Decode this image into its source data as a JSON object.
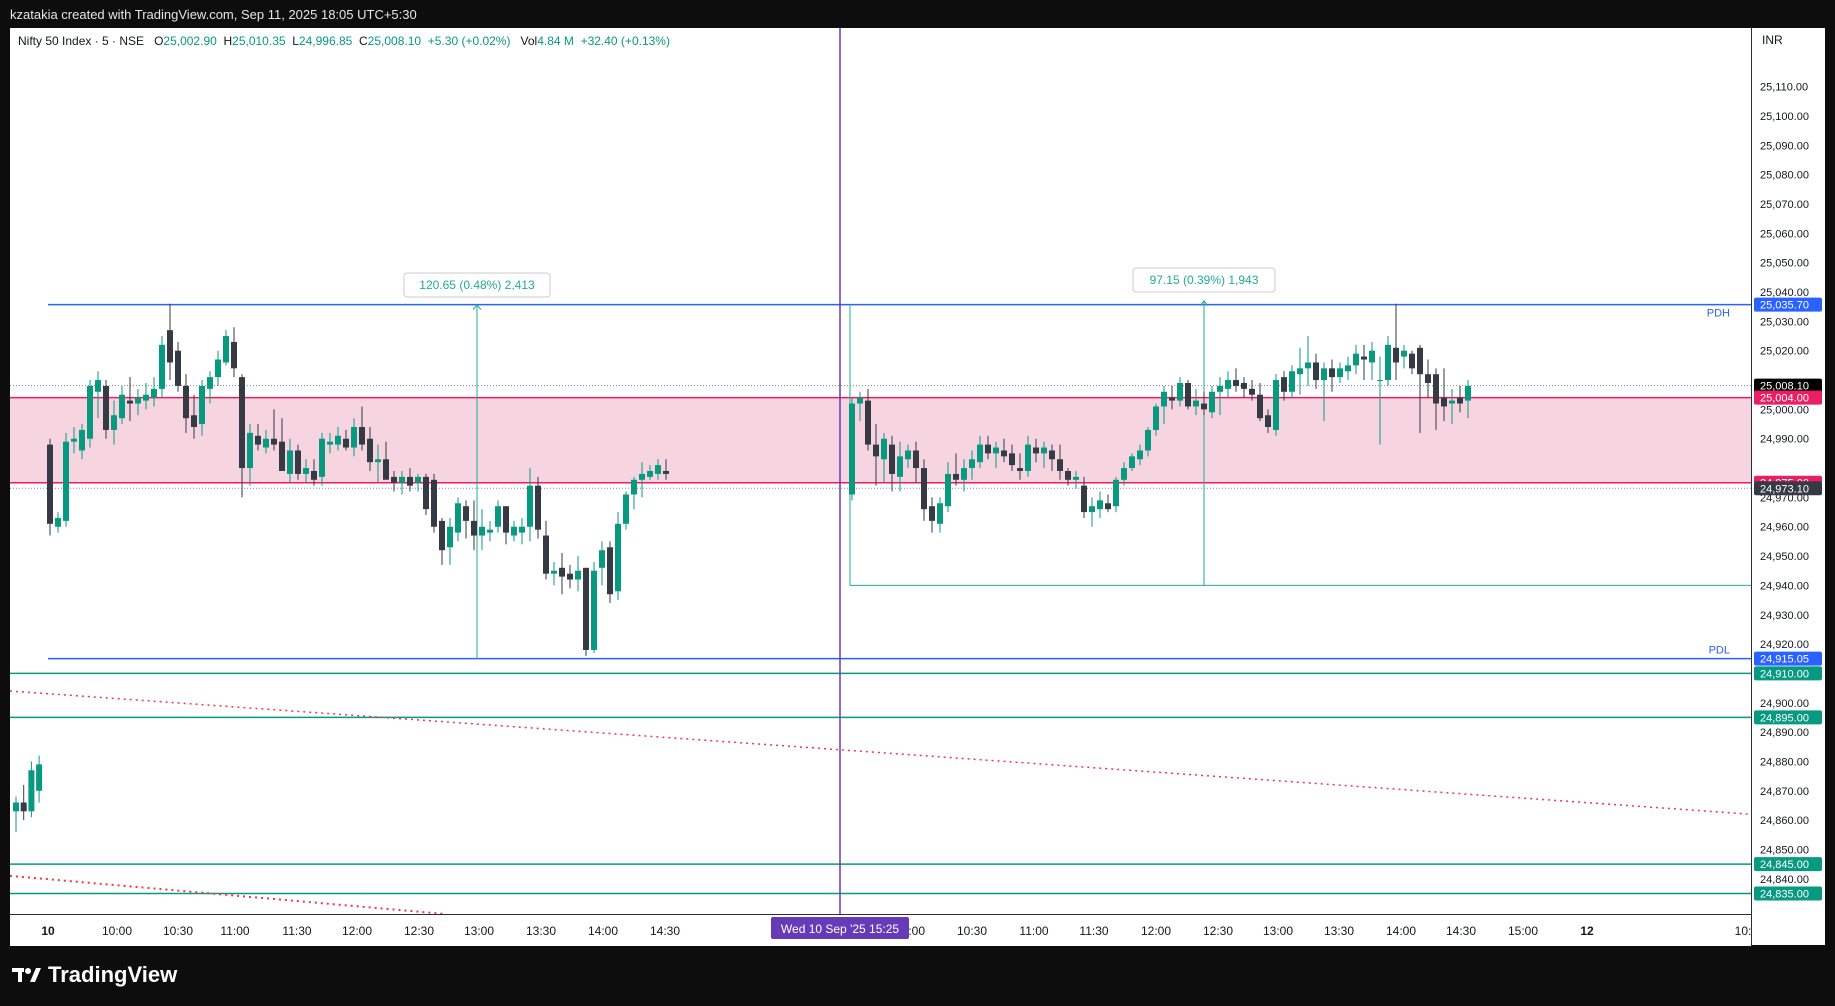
{
  "header": {
    "text": "kzatakia created with TradingView.com, Sep 11, 2025 18:05 UTC+5:30"
  },
  "legend": {
    "symbol": "Nifty 50 Index · 5 · NSE",
    "o_label": "O",
    "o": "25,002.90",
    "h_label": "H",
    "h": "25,010.35",
    "l_label": "L",
    "l": "24,996.85",
    "c_label": "C",
    "c": "25,008.10",
    "change": "+5.30 (+0.02%)",
    "vol_label": "Vol",
    "vol": "4.84 M",
    "vol_change": "+32.40 (+0.13%)"
  },
  "currency": "INR",
  "footer": {
    "brand": "TradingView"
  },
  "colors": {
    "up": "#089981",
    "down": "#363a45",
    "level": "#2962ff",
    "zone": "#f7d5e0",
    "zone_line": "#e91e63",
    "cursor": "#673ab7",
    "trend": "#f23645",
    "green_line": "#089981"
  },
  "chart_data": {
    "type": "candlestick",
    "ylim": [
      24828,
      25130
    ],
    "y_ticks": [
      "25,110.00",
      "25,100.00",
      "25,090.00",
      "25,080.00",
      "25,070.00",
      "25,060.00",
      "25,050.00",
      "25,040.00",
      "25,030.00",
      "25,020.00",
      "25,000.00",
      "24,990.00",
      "24,970.00",
      "24,960.00",
      "24,950.00",
      "24,940.00",
      "24,930.00",
      "24,920.00",
      "24,900.00",
      "24,890.00",
      "24,880.00",
      "24,870.00",
      "24,860.00",
      "24,850.00",
      "24,840.00"
    ],
    "x_ticks": [
      "10",
      "10:00",
      "10:30",
      "11:00",
      "11:30",
      "12:00",
      "12:30",
      "13:00",
      "13:30",
      "14:00",
      "14:30",
      "10:00",
      "10:30",
      "11:00",
      "11:30",
      "12:00",
      "12:30",
      "13:00",
      "13:30",
      "14:00",
      "14:30",
      "15:00",
      "12",
      "10:"
    ],
    "crosshair_time": "Wed 10 Sep '25   15:25",
    "price_labels": [
      {
        "price": 25035.7,
        "text": "25,035.70",
        "kind": "level"
      },
      {
        "price": 25008.1,
        "text": "25,008.10",
        "kind": "last"
      },
      {
        "price": 25004.0,
        "text": "25,004.00",
        "kind": "zone"
      },
      {
        "price": 24975.0,
        "text": "24,975.00",
        "kind": "zone"
      },
      {
        "price": 24973.1,
        "text": "24,973.10",
        "kind": "prev"
      },
      {
        "price": 24915.05,
        "text": "24,915.05",
        "kind": "level"
      },
      {
        "price": 24910.0,
        "text": "24,910.00",
        "kind": "green"
      },
      {
        "price": 24895.0,
        "text": "24,895.00",
        "kind": "green"
      },
      {
        "price": 24845.0,
        "text": "24,845.00",
        "kind": "green"
      },
      {
        "price": 24835.0,
        "text": "24,835.00",
        "kind": "green"
      }
    ],
    "annotations": {
      "pdh": "PDH",
      "pdl": "PDL",
      "measure_1": "120.65 (0.48%) 2,413",
      "measure_2": "97.15 (0.39%) 1,943"
    },
    "zone": [
      24975.0,
      25004.0
    ],
    "prev_day_tail": [
      {
        "o": 24863,
        "h": 24868,
        "l": 24856,
        "c": 24866
      },
      {
        "o": 24866,
        "h": 24872,
        "l": 24860,
        "c": 24863
      },
      {
        "o": 24863,
        "h": 24880,
        "l": 24861,
        "c": 24877
      },
      {
        "o": 24870,
        "h": 24882,
        "l": 24866,
        "c": 24879
      }
    ],
    "day1": [
      {
        "o": 24988,
        "h": 24990,
        "l": 24957,
        "c": 24961
      },
      {
        "o": 24960,
        "h": 24965,
        "l": 24958,
        "c": 24963
      },
      {
        "o": 24962,
        "h": 24992,
        "l": 24960,
        "c": 24989
      },
      {
        "o": 24989,
        "h": 24994,
        "l": 24985,
        "c": 24990
      },
      {
        "o": 24986,
        "h": 24995,
        "l": 24983,
        "c": 24993
      },
      {
        "o": 24990,
        "h": 25010,
        "l": 24987,
        "c": 25008
      },
      {
        "o": 25006,
        "h": 25013,
        "l": 24997,
        "c": 25010
      },
      {
        "o": 25008,
        "h": 25010,
        "l": 24990,
        "c": 24993
      },
      {
        "o": 24993,
        "h": 25003,
        "l": 24988,
        "c": 24998
      },
      {
        "o": 24997,
        "h": 25008,
        "l": 24995,
        "c": 25005
      },
      {
        "o": 25003,
        "h": 25011,
        "l": 24996,
        "c": 25002
      },
      {
        "o": 25002,
        "h": 25007,
        "l": 24998,
        "c": 25004
      },
      {
        "o": 25003,
        "h": 25009,
        "l": 25000,
        "c": 25005
      },
      {
        "o": 25004,
        "h": 25011,
        "l": 25001,
        "c": 25007
      },
      {
        "o": 25007,
        "h": 25025,
        "l": 25004,
        "c": 25022
      },
      {
        "o": 25027,
        "h": 25036,
        "l": 25010,
        "c": 25016
      },
      {
        "o": 25020,
        "h": 25023,
        "l": 25006,
        "c": 25008
      },
      {
        "o": 25008,
        "h": 25012,
        "l": 24992,
        "c": 24997
      },
      {
        "o": 24998,
        "h": 25005,
        "l": 24990,
        "c": 24994
      },
      {
        "o": 24995,
        "h": 25010,
        "l": 24991,
        "c": 25008
      },
      {
        "o": 25007,
        "h": 25013,
        "l": 25002,
        "c": 25011
      },
      {
        "o": 25011,
        "h": 25020,
        "l": 25008,
        "c": 25017
      },
      {
        "o": 25016,
        "h": 25027,
        "l": 25015,
        "c": 25025
      },
      {
        "o": 25023,
        "h": 25028,
        "l": 25011,
        "c": 25014
      },
      {
        "o": 25011,
        "h": 25012,
        "l": 24970,
        "c": 24980
      },
      {
        "o": 24980,
        "h": 24995,
        "l": 24974,
        "c": 24992
      },
      {
        "o": 24991,
        "h": 24995,
        "l": 24986,
        "c": 24988
      },
      {
        "o": 24987,
        "h": 24993,
        "l": 24985,
        "c": 24990
      },
      {
        "o": 24990,
        "h": 25000,
        "l": 24986,
        "c": 24988
      },
      {
        "o": 24989,
        "h": 24997,
        "l": 24981,
        "c": 24979
      },
      {
        "o": 24978,
        "h": 24990,
        "l": 24975,
        "c": 24986
      },
      {
        "o": 24986,
        "h": 24988,
        "l": 24976,
        "c": 24978
      },
      {
        "o": 24978,
        "h": 24983,
        "l": 24975,
        "c": 24980
      },
      {
        "o": 24979,
        "h": 24983,
        "l": 24974,
        "c": 24976
      },
      {
        "o": 24977,
        "h": 24992,
        "l": 24974,
        "c": 24990
      },
      {
        "o": 24988,
        "h": 24992,
        "l": 24985,
        "c": 24989
      },
      {
        "o": 24988,
        "h": 24994,
        "l": 24986,
        "c": 24991
      },
      {
        "o": 24990,
        "h": 24993,
        "l": 24986,
        "c": 24987
      },
      {
        "o": 24987,
        "h": 24997,
        "l": 24984,
        "c": 24994
      },
      {
        "o": 24994,
        "h": 25001,
        "l": 24986,
        "c": 24988
      },
      {
        "o": 24990,
        "h": 24994,
        "l": 24979,
        "c": 24982
      },
      {
        "o": 24982,
        "h": 24988,
        "l": 24975,
        "c": 24983
      },
      {
        "o": 24983,
        "h": 24989,
        "l": 24977,
        "c": 24976
      },
      {
        "o": 24977,
        "h": 24979,
        "l": 24972,
        "c": 24975
      },
      {
        "o": 24975,
        "h": 24979,
        "l": 24971,
        "c": 24977
      },
      {
        "o": 24977,
        "h": 24980,
        "l": 24972,
        "c": 24974
      },
      {
        "o": 24975,
        "h": 24978,
        "l": 24972,
        "c": 24977
      },
      {
        "o": 24977,
        "h": 24978,
        "l": 24964,
        "c": 24966
      },
      {
        "o": 24976,
        "h": 24978,
        "l": 24958,
        "c": 24960
      },
      {
        "o": 24962,
        "h": 24963,
        "l": 24947,
        "c": 24952
      },
      {
        "o": 24953,
        "h": 24963,
        "l": 24947,
        "c": 24960
      },
      {
        "o": 24958,
        "h": 24970,
        "l": 24955,
        "c": 24968
      },
      {
        "o": 24967,
        "h": 24969,
        "l": 24956,
        "c": 24962
      },
      {
        "o": 24962,
        "h": 24969,
        "l": 24952,
        "c": 24957
      },
      {
        "o": 24957,
        "h": 24966,
        "l": 24952,
        "c": 24960
      },
      {
        "o": 24958,
        "h": 24962,
        "l": 24955,
        "c": 24959
      },
      {
        "o": 24960,
        "h": 24969,
        "l": 24958,
        "c": 24967
      },
      {
        "o": 24967,
        "h": 24967,
        "l": 24954,
        "c": 24958
      },
      {
        "o": 24957,
        "h": 24962,
        "l": 24955,
        "c": 24960
      },
      {
        "o": 24958,
        "h": 24963,
        "l": 24954,
        "c": 24960
      },
      {
        "o": 24960,
        "h": 24980,
        "l": 24955,
        "c": 24974
      },
      {
        "o": 24974,
        "h": 24977,
        "l": 24956,
        "c": 24959
      },
      {
        "o": 24957,
        "h": 24962,
        "l": 24942,
        "c": 24944
      },
      {
        "o": 24944,
        "h": 24948,
        "l": 24940,
        "c": 24945
      },
      {
        "o": 24946,
        "h": 24951,
        "l": 24937,
        "c": 24943
      },
      {
        "o": 24944,
        "h": 24947,
        "l": 24939,
        "c": 24942
      },
      {
        "o": 24942,
        "h": 24950,
        "l": 24938,
        "c": 24945
      },
      {
        "o": 24946,
        "h": 24946,
        "l": 24916,
        "c": 24918
      },
      {
        "o": 24918,
        "h": 24948,
        "l": 24917,
        "c": 24945
      },
      {
        "o": 24946,
        "h": 24955,
        "l": 24940,
        "c": 24952
      },
      {
        "o": 24953,
        "h": 24955,
        "l": 24934,
        "c": 24937
      },
      {
        "o": 24938,
        "h": 24965,
        "l": 24935,
        "c": 24961
      },
      {
        "o": 24961,
        "h": 24972,
        "l": 24959,
        "c": 24971
      },
      {
        "o": 24971,
        "h": 24977,
        "l": 24966,
        "c": 24976
      },
      {
        "o": 24976,
        "h": 24982,
        "l": 24970,
        "c": 24978
      },
      {
        "o": 24977,
        "h": 24981,
        "l": 24976,
        "c": 24979
      },
      {
        "o": 24978,
        "h": 24983,
        "l": 24976,
        "c": 24981
      },
      {
        "o": 24979,
        "h": 24983,
        "l": 24976,
        "c": 24978
      }
    ],
    "day2": [
      {
        "o": 24971,
        "h": 25004,
        "l": 24969,
        "c": 25002
      },
      {
        "o": 25002,
        "h": 25006,
        "l": 24996,
        "c": 25004
      },
      {
        "o": 25003,
        "h": 25007,
        "l": 24986,
        "c": 24988
      },
      {
        "o": 24988,
        "h": 24995,
        "l": 24974,
        "c": 24984
      },
      {
        "o": 24983,
        "h": 24992,
        "l": 24975,
        "c": 24990
      },
      {
        "o": 24988,
        "h": 24991,
        "l": 24972,
        "c": 24978
      },
      {
        "o": 24977,
        "h": 24989,
        "l": 24972,
        "c": 24984
      },
      {
        "o": 24983,
        "h": 24988,
        "l": 24980,
        "c": 24986
      },
      {
        "o": 24986,
        "h": 24989,
        "l": 24975,
        "c": 24980
      },
      {
        "o": 24980,
        "h": 24983,
        "l": 24962,
        "c": 24966
      },
      {
        "o": 24967,
        "h": 24970,
        "l": 24958,
        "c": 24962
      },
      {
        "o": 24961,
        "h": 24970,
        "l": 24958,
        "c": 24968
      },
      {
        "o": 24967,
        "h": 24982,
        "l": 24965,
        "c": 24978
      },
      {
        "o": 24978,
        "h": 24985,
        "l": 24974,
        "c": 24976
      },
      {
        "o": 24976,
        "h": 24983,
        "l": 24972,
        "c": 24980
      },
      {
        "o": 24980,
        "h": 24986,
        "l": 24976,
        "c": 24983
      },
      {
        "o": 24982,
        "h": 24991,
        "l": 24980,
        "c": 24988
      },
      {
        "o": 24988,
        "h": 24991,
        "l": 24983,
        "c": 24985
      },
      {
        "o": 24985,
        "h": 24989,
        "l": 24980,
        "c": 24987
      },
      {
        "o": 24986,
        "h": 24990,
        "l": 24982,
        "c": 24984
      },
      {
        "o": 24985,
        "h": 24988,
        "l": 24979,
        "c": 24981
      },
      {
        "o": 24980,
        "h": 24985,
        "l": 24976,
        "c": 24979
      },
      {
        "o": 24979,
        "h": 24991,
        "l": 24977,
        "c": 24988
      },
      {
        "o": 24987,
        "h": 24990,
        "l": 24982,
        "c": 24985
      },
      {
        "o": 24985,
        "h": 24989,
        "l": 24980,
        "c": 24987
      },
      {
        "o": 24986,
        "h": 24988,
        "l": 24979,
        "c": 24983
      },
      {
        "o": 24983,
        "h": 24988,
        "l": 24976,
        "c": 24979
      },
      {
        "o": 24979,
        "h": 24980,
        "l": 24974,
        "c": 24976
      },
      {
        "o": 24976,
        "h": 24979,
        "l": 24973,
        "c": 24977
      },
      {
        "o": 24974,
        "h": 24977,
        "l": 24963,
        "c": 24965
      },
      {
        "o": 24965,
        "h": 24970,
        "l": 24960,
        "c": 24967
      },
      {
        "o": 24966,
        "h": 24972,
        "l": 24963,
        "c": 24969
      },
      {
        "o": 24968,
        "h": 24971,
        "l": 24965,
        "c": 24966
      },
      {
        "o": 24967,
        "h": 24977,
        "l": 24965,
        "c": 24976
      },
      {
        "o": 24976,
        "h": 24982,
        "l": 24974,
        "c": 24980
      },
      {
        "o": 24980,
        "h": 24985,
        "l": 24979,
        "c": 24984
      },
      {
        "o": 24983,
        "h": 24988,
        "l": 24981,
        "c": 24986
      },
      {
        "o": 24986,
        "h": 24994,
        "l": 24984,
        "c": 24993
      },
      {
        "o": 24993,
        "h": 25002,
        "l": 24991,
        "c": 25001
      },
      {
        "o": 25001,
        "h": 25008,
        "l": 24995,
        "c": 25006
      },
      {
        "o": 25004,
        "h": 25008,
        "l": 25000,
        "c": 25003
      },
      {
        "o": 25003,
        "h": 25011,
        "l": 25001,
        "c": 25009
      },
      {
        "o": 25009,
        "h": 25010,
        "l": 25000,
        "c": 25001
      },
      {
        "o": 25001,
        "h": 25007,
        "l": 24998,
        "c": 25003
      },
      {
        "o": 25002,
        "h": 25006,
        "l": 24998,
        "c": 25000
      },
      {
        "o": 24999,
        "h": 25008,
        "l": 24997,
        "c": 25006
      },
      {
        "o": 25006,
        "h": 25011,
        "l": 24998,
        "c": 25008
      },
      {
        "o": 25007,
        "h": 25013,
        "l": 25004,
        "c": 25010
      },
      {
        "o": 25010,
        "h": 25014,
        "l": 25006,
        "c": 25008
      },
      {
        "o": 25009,
        "h": 25011,
        "l": 25004,
        "c": 25007
      },
      {
        "o": 25007,
        "h": 25010,
        "l": 25003,
        "c": 25005
      },
      {
        "o": 25005,
        "h": 25009,
        "l": 24996,
        "c": 24997
      },
      {
        "o": 24998,
        "h": 25000,
        "l": 24992,
        "c": 24994
      },
      {
        "o": 24993,
        "h": 25012,
        "l": 24991,
        "c": 25010
      },
      {
        "o": 25011,
        "h": 25013,
        "l": 25003,
        "c": 25006
      },
      {
        "o": 25006,
        "h": 25015,
        "l": 25004,
        "c": 25013
      },
      {
        "o": 25012,
        "h": 25021,
        "l": 25005,
        "c": 25014
      },
      {
        "o": 25014,
        "h": 25025,
        "l": 25008,
        "c": 25016
      },
      {
        "o": 25016,
        "h": 25019,
        "l": 25007,
        "c": 25010
      },
      {
        "o": 25010,
        "h": 25016,
        "l": 24996,
        "c": 25014
      },
      {
        "o": 25014,
        "h": 25017,
        "l": 25006,
        "c": 25011
      },
      {
        "o": 25011,
        "h": 25016,
        "l": 25009,
        "c": 25014
      },
      {
        "o": 25013,
        "h": 25018,
        "l": 25010,
        "c": 25015
      },
      {
        "o": 25015,
        "h": 25022,
        "l": 25012,
        "c": 25019
      },
      {
        "o": 25018,
        "h": 25022,
        "l": 25010,
        "c": 25017
      },
      {
        "o": 25016,
        "h": 25023,
        "l": 25010,
        "c": 25020
      },
      {
        "o": 25010,
        "h": 25018,
        "l": 24988,
        "c": 25010
      },
      {
        "o": 25010,
        "h": 25025,
        "l": 25008,
        "c": 25022
      },
      {
        "o": 25021,
        "h": 25036,
        "l": 25010,
        "c": 25016
      },
      {
        "o": 25018,
        "h": 25022,
        "l": 25014,
        "c": 25020
      },
      {
        "o": 25019,
        "h": 25020,
        "l": 25012,
        "c": 25014
      },
      {
        "o": 25021,
        "h": 25022,
        "l": 24992,
        "c": 25012
      },
      {
        "o": 25012,
        "h": 25017,
        "l": 25004,
        "c": 25009
      },
      {
        "o": 25012,
        "h": 25014,
        "l": 24993,
        "c": 25002
      },
      {
        "o": 25004,
        "h": 25014,
        "l": 24996,
        "c": 25001
      },
      {
        "o": 25002,
        "h": 25007,
        "l": 24995,
        "c": 25003
      },
      {
        "o": 25004,
        "h": 25008,
        "l": 24999,
        "c": 25002
      },
      {
        "o": 25003,
        "h": 25010,
        "l": 24997,
        "c": 25008
      }
    ]
  }
}
